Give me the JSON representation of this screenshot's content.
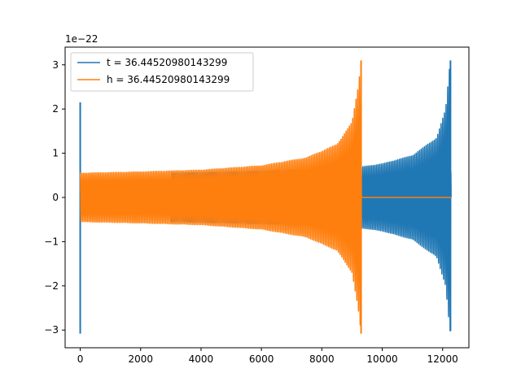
{
  "chart_data": {
    "type": "line",
    "title": "",
    "xlabel": "",
    "ylabel": "",
    "offset_text": "1e−22",
    "xlim": [
      -500,
      12870
    ],
    "ylim": [
      -3.4,
      3.4
    ],
    "xticks": [
      0,
      2000,
      4000,
      6000,
      8000,
      10000,
      12000
    ],
    "xtick_labels": [
      "0",
      "2000",
      "4000",
      "6000",
      "8000",
      "10000",
      "12000"
    ],
    "yticks": [
      -3,
      -2,
      -1,
      0,
      1,
      2,
      3
    ],
    "ytick_labels": [
      "−3",
      "−2",
      "−1",
      "0",
      "1",
      "2",
      "3"
    ],
    "grid": false,
    "legend_position": "upper-left",
    "series": [
      {
        "name": "t = 36.44520980143299",
        "color": "#1f77b4",
        "x_range": [
          0,
          12280
        ],
        "envelope": [
          [
            0,
            0
          ],
          [
            2950,
            0
          ],
          [
            3000,
            0.55
          ],
          [
            5000,
            0.58
          ],
          [
            7000,
            0.62
          ],
          [
            8500,
            0.66
          ],
          [
            9300,
            0.69
          ],
          [
            10000,
            0.76
          ],
          [
            11000,
            0.95
          ],
          [
            11800,
            1.35
          ],
          [
            12100,
            2.0
          ],
          [
            12250,
            3.1
          ],
          [
            12280,
            0
          ]
        ],
        "spikes": [
          {
            "x": 0,
            "max": 2.15,
            "min": -3.08
          },
          {
            "x": 12260,
            "max": 3.1,
            "min": -3.02
          }
        ],
        "stacking": "back"
      },
      {
        "name": "h = 36.44520980143299",
        "color": "#ff7f0e",
        "x_range": [
          0,
          12280
        ],
        "envelope": [
          [
            0,
            0.55
          ],
          [
            2000,
            0.58
          ],
          [
            4000,
            0.62
          ],
          [
            6000,
            0.72
          ],
          [
            7500,
            0.9
          ],
          [
            8500,
            1.2
          ],
          [
            9000,
            1.7
          ],
          [
            9200,
            2.5
          ],
          [
            9300,
            3.1
          ],
          [
            9310,
            0
          ],
          [
            12280,
            0
          ]
        ],
        "spikes": [
          {
            "x": 9300,
            "max": 3.1,
            "min": -3.08
          }
        ],
        "stacking": "front"
      }
    ]
  }
}
